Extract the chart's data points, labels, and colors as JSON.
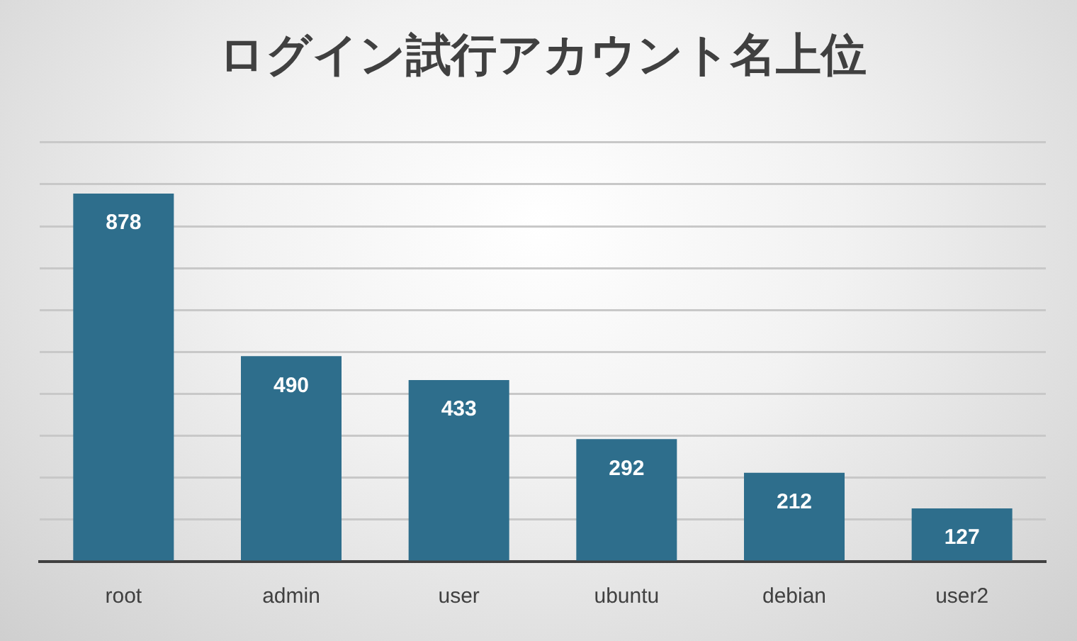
{
  "chart_data": {
    "type": "bar",
    "title": "ログイン試行アカウント名上位",
    "categories": [
      "root",
      "admin",
      "user",
      "ubuntu",
      "debian",
      "user2"
    ],
    "values": [
      878,
      490,
      433,
      292,
      212,
      127
    ],
    "color": "#2e6e8c",
    "ylim": [
      0,
      1000
    ],
    "grid": "y",
    "legend": false,
    "tick_labels": "x",
    "data_labels": true
  }
}
